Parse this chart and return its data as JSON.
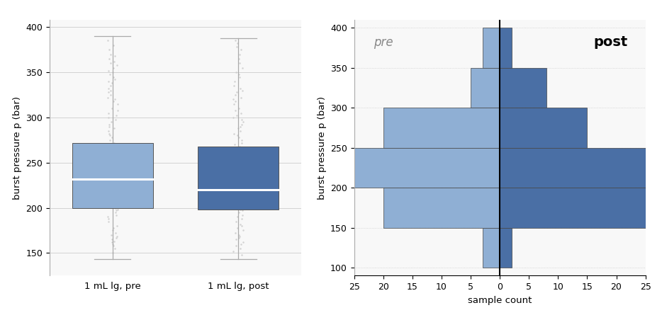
{
  "boxplot": {
    "pre": {
      "whisker_low": 143,
      "q1": 200,
      "median": 232,
      "q3": 272,
      "whisker_high": 390,
      "color": "#8fafd4",
      "jitter_vals": [
        150,
        155,
        158,
        160,
        162,
        163,
        165,
        167,
        168,
        170,
        172,
        175,
        178,
        180,
        185,
        188,
        190,
        192,
        195,
        197,
        198,
        200,
        202,
        205,
        207,
        210,
        212,
        215,
        218,
        220,
        222,
        224,
        226,
        228,
        230,
        232,
        234,
        235,
        237,
        238,
        240,
        242,
        244,
        246,
        248,
        250,
        252,
        254,
        256,
        258,
        260,
        262,
        264,
        266,
        268,
        270,
        272,
        275,
        278,
        280,
        282,
        285,
        288,
        290,
        292,
        295,
        298,
        300,
        302,
        305,
        308,
        310,
        315,
        318,
        320,
        322,
        325,
        328,
        330,
        332,
        335,
        338,
        340,
        342,
        345,
        348,
        350,
        352,
        355,
        358,
        360,
        362,
        365,
        368,
        370,
        375,
        380,
        385
      ]
    },
    "post": {
      "whisker_low": 143,
      "q1": 198,
      "median": 220,
      "q3": 268,
      "whisker_high": 388,
      "color": "#4a6fa5",
      "jitter_vals": [
        148,
        152,
        155,
        158,
        160,
        162,
        165,
        167,
        168,
        170,
        172,
        175,
        178,
        180,
        182,
        185,
        188,
        190,
        192,
        195,
        197,
        198,
        200,
        202,
        205,
        207,
        210,
        212,
        215,
        218,
        220,
        222,
        224,
        226,
        228,
        230,
        232,
        234,
        235,
        237,
        238,
        240,
        242,
        244,
        246,
        248,
        250,
        252,
        254,
        256,
        258,
        260,
        262,
        264,
        266,
        268,
        270,
        272,
        275,
        278,
        280,
        282,
        285,
        288,
        290,
        292,
        295,
        298,
        300,
        302,
        305,
        308,
        310,
        315,
        318,
        320,
        322,
        325,
        328,
        330,
        332,
        335,
        340,
        345,
        348,
        350,
        355,
        360,
        365,
        370,
        375,
        378,
        382,
        385
      ]
    },
    "labels": [
      "1 mL lg, pre",
      "1 mL lg, post"
    ],
    "ylabel": "burst pressure p (bar)",
    "ylim": [
      125,
      408
    ],
    "yticks": [
      150,
      200,
      250,
      300,
      350,
      400
    ],
    "bg_color": "#f8f8f8"
  },
  "histogram": {
    "bin_edges": [
      100,
      150,
      200,
      250,
      300,
      350,
      400
    ],
    "pre_counts": [
      3,
      20,
      25,
      20,
      5,
      3
    ],
    "post_counts": [
      2,
      25,
      25,
      15,
      8,
      2
    ],
    "pre_color": "#8fafd4",
    "post_color": "#4a6fa5",
    "center_line_color": "#000000",
    "ylabel": "burst pressure p (bar)",
    "xlabel": "sample count",
    "xlim": 25,
    "ylim": [
      90,
      410
    ],
    "yticks": [
      100,
      150,
      200,
      250,
      300,
      350,
      400
    ],
    "pre_label": "pre",
    "post_label": "post",
    "pre_label_color": "#888888",
    "post_label_color": "#000000",
    "bg_color": "#f8f8f8"
  },
  "fig_bg": "#ffffff"
}
